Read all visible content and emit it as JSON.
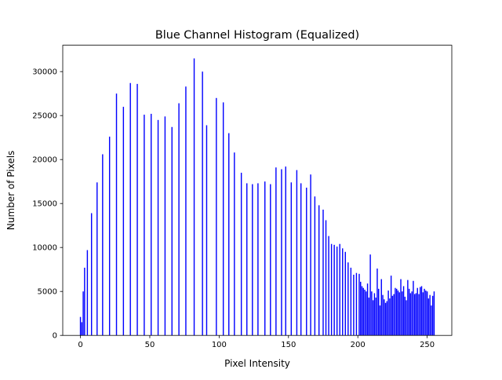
{
  "chart_data": {
    "type": "bar",
    "title": "Blue Channel Histogram (Equalized)",
    "xlabel": "Pixel Intensity",
    "ylabel": "Number of Pixels",
    "xlim": [
      -12.75,
      267.75
    ],
    "ylim": [
      0,
      33000
    ],
    "xticks": [
      0,
      50,
      100,
      150,
      200,
      250
    ],
    "yticks": [
      0,
      5000,
      10000,
      15000,
      20000,
      25000,
      30000
    ],
    "bar_color": "#0000ff",
    "grid": false,
    "x": [
      0,
      1,
      2,
      3,
      5,
      8,
      12,
      16,
      21,
      26,
      31,
      36,
      41,
      46,
      51,
      56,
      61,
      66,
      71,
      76,
      82,
      88,
      91,
      98,
      103,
      107,
      111,
      116,
      120,
      124,
      128,
      133,
      137,
      141,
      145,
      148,
      152,
      156,
      159,
      163,
      166,
      169,
      172,
      175,
      177,
      179,
      181,
      183,
      185,
      187,
      189,
      191,
      193,
      195,
      197,
      199,
      201,
      202,
      203,
      204,
      205,
      206,
      207,
      208,
      209,
      210,
      211,
      212,
      213,
      214,
      215,
      216,
      217,
      218,
      219,
      220,
      221,
      222,
      223,
      224,
      225,
      226,
      227,
      228,
      229,
      230,
      231,
      232,
      233,
      234,
      235,
      236,
      237,
      238,
      239,
      240,
      241,
      242,
      243,
      244,
      245,
      246,
      247,
      248,
      249,
      250,
      251,
      252,
      253,
      254,
      255
    ],
    "values": [
      2100,
      1500,
      5000,
      7700,
      9700,
      13900,
      17400,
      20600,
      22600,
      27500,
      26000,
      28700,
      28600,
      25100,
      25200,
      24500,
      24900,
      23700,
      26400,
      28300,
      31500,
      30000,
      23900,
      27000,
      26500,
      23000,
      20800,
      18500,
      17300,
      17200,
      17300,
      17500,
      17200,
      19100,
      18900,
      19200,
      17400,
      18800,
      17300,
      16800,
      18300,
      15800,
      14800,
      14300,
      13100,
      11300,
      10400,
      10300,
      10100,
      10400,
      9900,
      9500,
      8300,
      7700,
      6900,
      7100,
      7000,
      6100,
      5600,
      5400,
      5200,
      5000,
      5900,
      4300,
      9200,
      5000,
      4000,
      4800,
      4300,
      7600,
      5300,
      3400,
      6400,
      4600,
      4100,
      3700,
      3900,
      5100,
      4200,
      6800,
      4500,
      4700,
      5400,
      5300,
      5100,
      4900,
      6400,
      5000,
      5600,
      4400,
      4000,
      6300,
      5300,
      4800,
      5000,
      6200,
      4700,
      4800,
      5400,
      4700,
      5500,
      5600,
      4900,
      5300,
      5100,
      5000,
      4200,
      4600,
      3400,
      4500,
      5000
    ],
    "bar_width": 0.8
  }
}
